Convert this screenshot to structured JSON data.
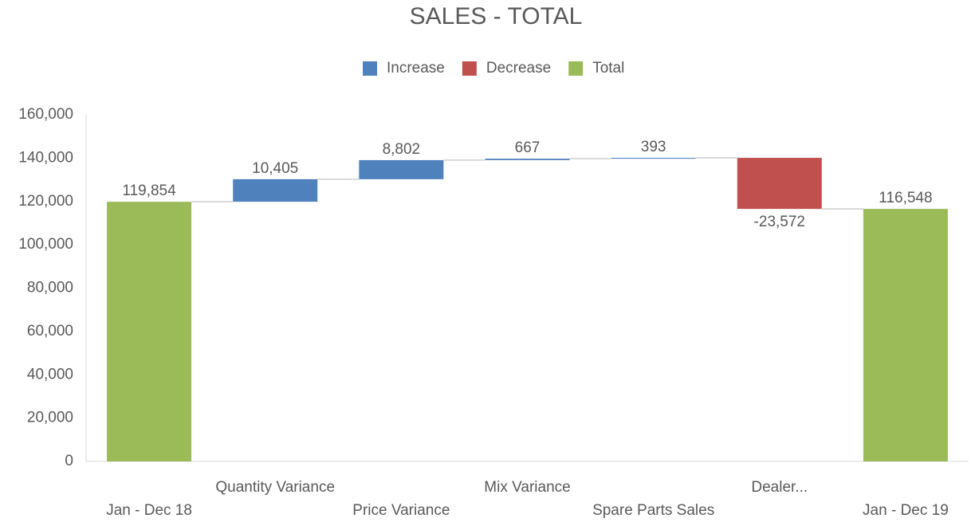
{
  "chart_data": {
    "type": "waterfall",
    "title": "SALES - TOTAL",
    "categories": [
      "Jan - Dec 18",
      "Quantity Variance",
      "Price Variance",
      "Mix Variance",
      "Spare Parts Sales",
      "Dealer...",
      "Jan - Dec 19"
    ],
    "values": [
      119854,
      10405,
      8802,
      667,
      393,
      -23572,
      116548
    ],
    "value_labels": [
      "119,854",
      "10,405",
      "8,802",
      "667",
      "393",
      "-23,572",
      "116,548"
    ],
    "is_total": [
      true,
      false,
      false,
      false,
      false,
      false,
      true
    ],
    "legend": [
      {
        "name": "Increase",
        "color": "#4f81bd"
      },
      {
        "name": "Decrease",
        "color": "#c0504d"
      },
      {
        "name": "Total",
        "color": "#9bbb59"
      }
    ],
    "ylim": [
      0,
      160000
    ],
    "yticks": [
      0,
      {
        "value": 20000,
        "label": "20,000"
      },
      {
        "value": 40000,
        "label": "40,000"
      },
      {
        "value": 60000,
        "label": "60,000"
      },
      {
        "value": 80000,
        "label": "80,000"
      },
      {
        "value": 100000,
        "label": "100,000"
      },
      {
        "value": 120000,
        "label": "120,000"
      },
      {
        "value": 140000,
        "label": "140,000"
      },
      {
        "value": 160000,
        "label": "160,000"
      }
    ],
    "grid": false
  }
}
